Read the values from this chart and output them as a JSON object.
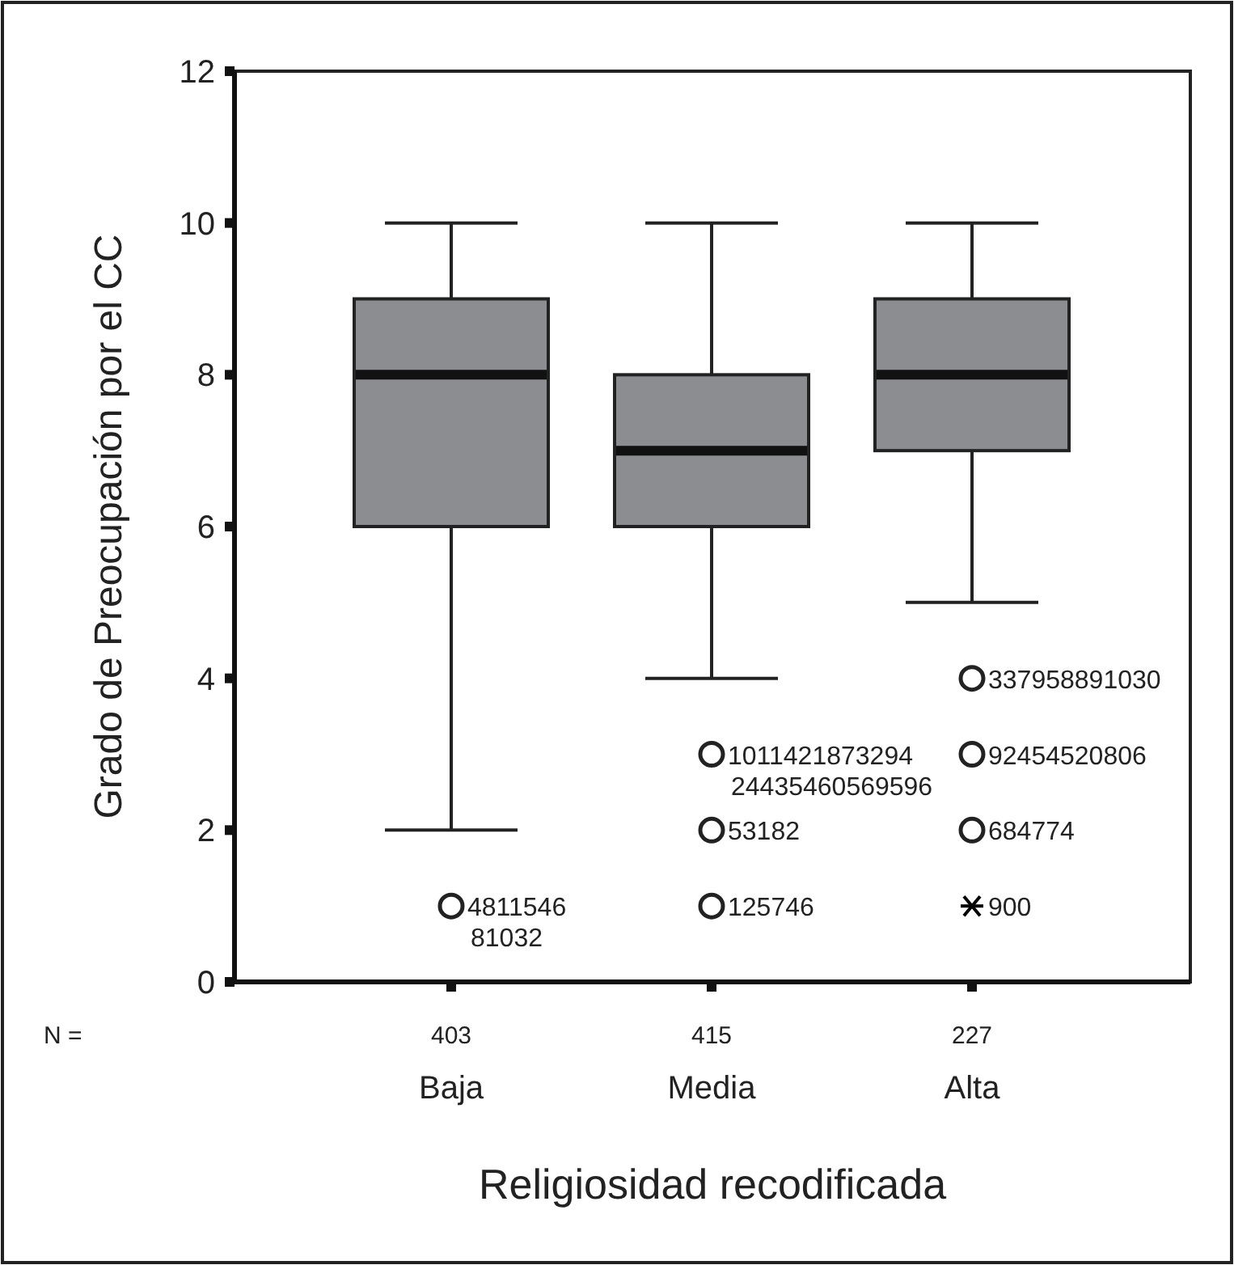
{
  "chart_data": {
    "type": "box",
    "xlabel": "Religiosidad recodificada",
    "ylabel": "Grado de Preocupación por el CC",
    "categories": [
      "Baja",
      "Media",
      "Alta"
    ],
    "color": "#8c8d90",
    "boxes": [
      {
        "low": 2,
        "q1": 6,
        "median": 8,
        "q3": 9,
        "high": 10,
        "outliers": [
          1
        ]
      },
      {
        "low": 4,
        "q1": 6,
        "median": 7,
        "q3": 8,
        "high": 10,
        "outliers": [
          1,
          2,
          3
        ]
      },
      {
        "low": 5,
        "q1": 7,
        "median": 8,
        "q3": 9,
        "high": 10,
        "outliers": [
          2,
          3,
          4
        ]
      }
    ],
    "series": [
      {
        "type": "scatter",
        "x": [
          "Alta"
        ],
        "values": [
          1
        ],
        "marker": "cross",
        "color": "#000000"
      }
    ],
    "ylim": [
      0,
      12
    ],
    "yticks": [
      0,
      2,
      4,
      6,
      8,
      10,
      12
    ],
    "grid": false,
    "annotations": [
      "4811546\n81032",
      "125746",
      "53182",
      "1011421873294\n24435460569596",
      "684774",
      "92454520806",
      "337958891030",
      "900",
      "N =",
      "403",
      "415",
      "227"
    ]
  }
}
